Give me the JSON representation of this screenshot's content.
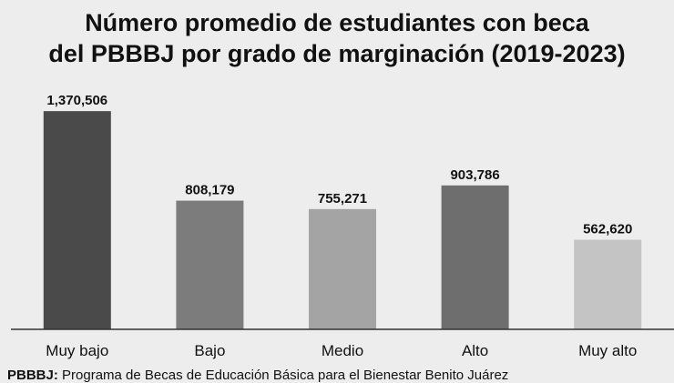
{
  "chart_data": {
    "type": "bar",
    "title_lines": [
      "Número promedio de estudiantes con beca",
      "del PBBBJ por grado de marginación (2019-2023)"
    ],
    "categories": [
      "Muy bajo",
      "Bajo",
      "Medio",
      "Alto",
      "Muy alto"
    ],
    "values": [
      1370506,
      808179,
      755271,
      903786,
      562620
    ],
    "value_labels": [
      "1,370,506",
      "808,179",
      "755,271",
      "903,786",
      "562,620"
    ],
    "bar_colors": [
      "#4a4a4a",
      "#7c7c7c",
      "#a4a4a4",
      "#6e6e6e",
      "#c4c4c4"
    ],
    "xlabel": "",
    "ylabel": "",
    "ylim": [
      0,
      1600000
    ],
    "grid": false,
    "legend": "none"
  },
  "footnote": {
    "abbr": "PBBBJ:",
    "text": "Programa de Becas de Educación Básica para el Bienestar Benito Juárez"
  }
}
